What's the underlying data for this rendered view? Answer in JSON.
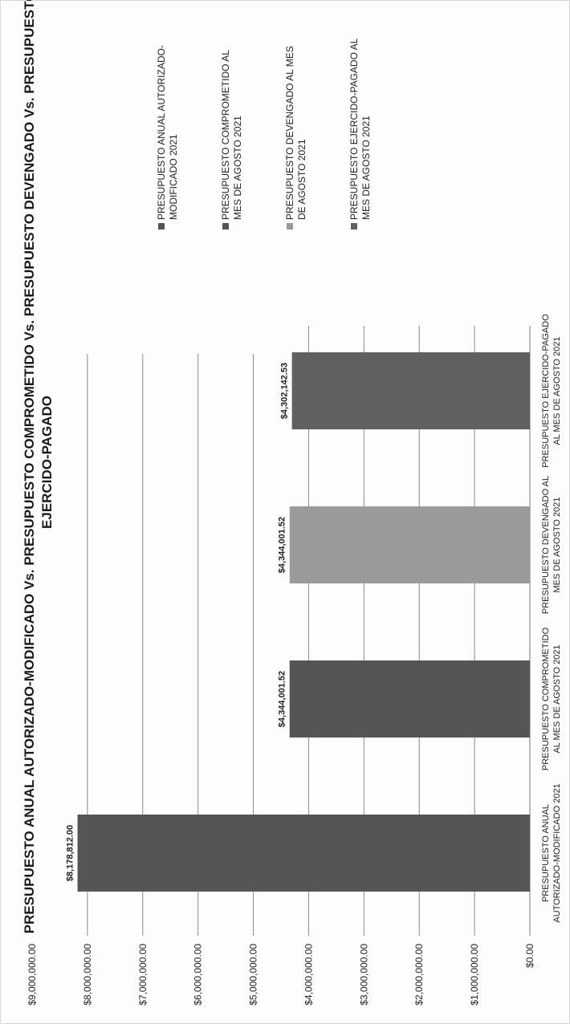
{
  "chart_data": {
    "type": "bar",
    "orientation": "rotated-90-counterclockwise",
    "title_line1": "PRESUPUESTO ANUAL AUTORIZADO-MODIFICADO Vs. PRESUPUESTO COMPROMETIDO Vs. PRESUPUESTO DEVENGADO Vs. PRESUPUESTO",
    "title_line2": "EJERCIDO-PAGADO",
    "categories": [
      {
        "line1": "PRESUPUESTO ANUAL",
        "line2": "AUTORIZADO-MODIFICADO 2021"
      },
      {
        "line1": "PRESUPUESTO COMPROMETIDO",
        "line2": "AL MES DE AGOSTO 2021"
      },
      {
        "line1": "PRESUPUESTO DEVENGADO AL",
        "line2": "MES DE AGOSTO 2021"
      },
      {
        "line1": "PRESUPUESTO EJERCIDO-PAGADO",
        "line2": "AL MES DE AGOSTO 2021"
      }
    ],
    "values": [
      8178812.0,
      4344001.52,
      4344001.52,
      4302142.53
    ],
    "value_labels": [
      "$8,178,812.00",
      "$4,344,001.52",
      "$4,344,001.52",
      "$4,302,142.53"
    ],
    "colors": [
      "#555555",
      "#555555",
      "#9a9a9a",
      "#606060"
    ],
    "ylim": [
      0,
      9000000
    ],
    "y_ticks": [
      {
        "value": 0,
        "label": "$0.00"
      },
      {
        "value": 1000000,
        "label": "$1,000,000.00"
      },
      {
        "value": 2000000,
        "label": "$2,000,000.00"
      },
      {
        "value": 3000000,
        "label": "$3,000,000.00"
      },
      {
        "value": 4000000,
        "label": "$4,000,000.00"
      },
      {
        "value": 5000000,
        "label": "$5,000,000.00"
      },
      {
        "value": 6000000,
        "label": "$6,000,000.00"
      },
      {
        "value": 7000000,
        "label": "$7,000,000.00"
      },
      {
        "value": 8000000,
        "label": "$8,000,000.00"
      },
      {
        "value": 9000000,
        "label": "$9,000,000.00"
      }
    ],
    "grid": true,
    "legend": {
      "placement": "right",
      "items": [
        {
          "line1": "PRESUPUESTO ANUAL AUTORIZADO-",
          "line2": "MODIFICADO 2021",
          "color": "#555555"
        },
        {
          "line1": "PRESUPUESTO COMPROMETIDO AL",
          "line2": "MES DE AGOSTO 2021",
          "color": "#555555"
        },
        {
          "line1": "PRESUPUESTO DEVENGADO AL MES",
          "line2": "DE AGOSTO 2021",
          "color": "#9a9a9a"
        },
        {
          "line1": "PRESUPUESTO EJERCIDO-PAGADO AL",
          "line2": "MES DE AGOSTO 2021",
          "color": "#606060"
        }
      ]
    }
  }
}
